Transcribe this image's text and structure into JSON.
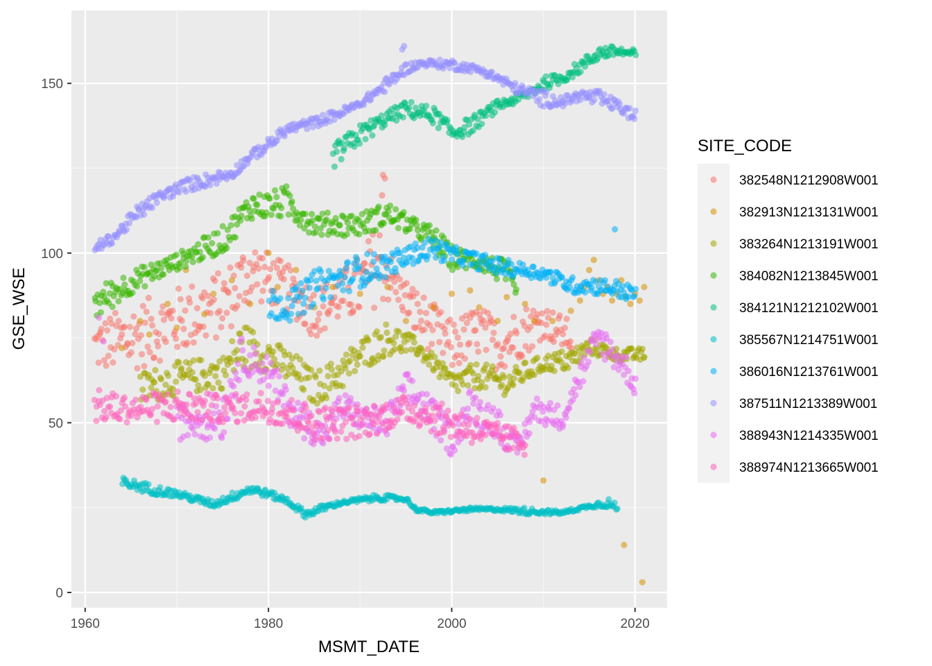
{
  "chart_data": {
    "type": "scatter",
    "title": "",
    "xlabel": "MSMT_DATE",
    "ylabel": "GSE_WSE",
    "xlim": [
      1958.5,
      2023.5
    ],
    "ylim": [
      -4.5,
      171.5
    ],
    "xticks": [
      1960,
      1980,
      2000,
      2020
    ],
    "xtick_labels": [
      "1960",
      "1980",
      "2000",
      "2020"
    ],
    "xminor": [
      1970,
      1990,
      2010
    ],
    "yticks": [
      0,
      50,
      100,
      150
    ],
    "ytick_labels": [
      "0",
      "50",
      "100",
      "150"
    ],
    "yminor": [
      25,
      75,
      125
    ],
    "grid": true,
    "legend": {
      "title": "SITE_CODE",
      "position": "right"
    },
    "point_alpha": 0.55,
    "series": [
      {
        "name": "382548N1212908W001",
        "color": "#F8766D",
        "ranges": [
          [
            1961,
            65,
            80
          ],
          [
            1965,
            65,
            85
          ],
          [
            1970,
            70,
            90
          ],
          [
            1975,
            75,
            95
          ],
          [
            1978,
            85,
            105
          ],
          [
            1980,
            85,
            100
          ],
          [
            1983,
            80,
            95
          ],
          [
            1985,
            75,
            90
          ],
          [
            1988,
            80,
            95
          ],
          [
            1990,
            80,
            100
          ],
          [
            1992,
            85,
            110
          ],
          [
            1994,
            85,
            95
          ],
          [
            1996,
            75,
            90
          ],
          [
            1998,
            70,
            85
          ],
          [
            2000,
            65,
            80
          ],
          [
            2003,
            70,
            85
          ],
          [
            2005,
            65,
            80
          ],
          [
            2008,
            70,
            85
          ],
          [
            2010,
            75,
            85
          ],
          [
            2013,
            70,
            80
          ]
        ],
        "points": [
          [
            1992.5,
            123
          ],
          [
            1992.7,
            122
          ],
          [
            1992.4,
            117
          ]
        ]
      },
      {
        "name": "382913N1213131W001",
        "color": "#D89000",
        "ranges": [],
        "points": [
          [
            1964,
            72
          ],
          [
            1966,
            80
          ],
          [
            1967,
            76
          ],
          [
            1969,
            85
          ],
          [
            1970,
            78
          ],
          [
            1971,
            95
          ],
          [
            1973,
            82
          ],
          [
            1974,
            88
          ],
          [
            1976,
            92
          ],
          [
            1978,
            85
          ],
          [
            1980,
            100
          ],
          [
            1981,
            90
          ],
          [
            1983,
            95
          ],
          [
            1985,
            84
          ],
          [
            1987,
            90
          ],
          [
            1990,
            88
          ],
          [
            1993,
            90
          ],
          [
            1995,
            80
          ],
          [
            1998,
            84
          ],
          [
            2000,
            88
          ],
          [
            2002,
            89
          ],
          [
            2003,
            84
          ],
          [
            2005,
            80
          ],
          [
            2006,
            87
          ],
          [
            2008,
            85
          ],
          [
            2009,
            80
          ],
          [
            2010,
            33
          ],
          [
            2011,
            80
          ],
          [
            2013,
            83
          ],
          [
            2014,
            86
          ],
          [
            2014.5,
            90
          ],
          [
            2015,
            95
          ],
          [
            2015.5,
            98
          ],
          [
            2016,
            92
          ],
          [
            2016.5,
            88
          ],
          [
            2017,
            90
          ],
          [
            2017.5,
            86
          ],
          [
            2018,
            88
          ],
          [
            2018.5,
            92
          ],
          [
            2018.8,
            14
          ],
          [
            2019,
            87
          ],
          [
            2019.5,
            85
          ],
          [
            2020,
            88
          ],
          [
            2020.5,
            86
          ],
          [
            2020.8,
            3
          ],
          [
            2021,
            90
          ]
        ]
      },
      {
        "name": "383264N1213191W001",
        "color": "#A3A500",
        "ranges": [
          [
            1966,
            55,
            65
          ],
          [
            1970,
            58,
            68
          ],
          [
            1975,
            60,
            70
          ],
          [
            1977,
            65,
            80
          ],
          [
            1980,
            65,
            75
          ],
          [
            1983,
            60,
            70
          ],
          [
            1985,
            55,
            65
          ],
          [
            1988,
            60,
            70
          ],
          [
            1990,
            65,
            75
          ],
          [
            1993,
            70,
            80
          ],
          [
            1996,
            70,
            75
          ],
          [
            1998,
            65,
            70
          ],
          [
            2000,
            58,
            65
          ],
          [
            2003,
            60,
            68
          ],
          [
            2006,
            58,
            65
          ],
          [
            2008,
            62,
            68
          ],
          [
            2010,
            65,
            70
          ],
          [
            2013,
            65,
            72
          ],
          [
            2015,
            70,
            75
          ],
          [
            2018,
            68,
            72
          ],
          [
            2021,
            68,
            72
          ]
        ],
        "points": []
      },
      {
        "name": "384082N1213845W001",
        "color": "#39B600",
        "ranges": [
          [
            1961,
            80,
            90
          ],
          [
            1965,
            88,
            95
          ],
          [
            1970,
            95,
            100
          ],
          [
            1975,
            100,
            108
          ],
          [
            1978,
            110,
            118
          ],
          [
            1980,
            110,
            118
          ],
          [
            1982,
            110,
            120
          ],
          [
            1985,
            105,
            112
          ],
          [
            1988,
            105,
            112
          ],
          [
            1990,
            105,
            112
          ],
          [
            1993,
            108,
            115
          ],
          [
            1996,
            105,
            110
          ],
          [
            1998,
            100,
            108
          ],
          [
            2000,
            95,
            102
          ],
          [
            2003,
            95,
            100
          ],
          [
            2006,
            90,
            98
          ],
          [
            2007,
            85,
            90
          ]
        ],
        "points": []
      },
      {
        "name": "384121N1212102W001",
        "color": "#00BF7D",
        "ranges": [
          [
            1987,
            125,
            132
          ],
          [
            1990,
            132,
            138
          ],
          [
            1993,
            138,
            142
          ],
          [
            1995,
            140,
            145
          ],
          [
            1998,
            138,
            143
          ],
          [
            2000,
            133,
            138
          ],
          [
            2002,
            135,
            140
          ],
          [
            2005,
            142,
            145
          ],
          [
            2008,
            145,
            148
          ],
          [
            2010,
            148,
            152
          ],
          [
            2012,
            150,
            153
          ],
          [
            2014,
            153,
            157
          ],
          [
            2016,
            157,
            161
          ],
          [
            2018,
            158,
            161
          ],
          [
            2020,
            157,
            160
          ]
        ],
        "points": []
      },
      {
        "name": "385567N1214751W001",
        "color": "#00BFC4",
        "ranges": [
          [
            1964,
            31,
            34
          ],
          [
            1967,
            29,
            32
          ],
          [
            1970,
            28,
            30
          ],
          [
            1974,
            25,
            27
          ],
          [
            1978,
            29,
            32
          ],
          [
            1980,
            28,
            30
          ],
          [
            1982,
            26,
            28
          ],
          [
            1984,
            22,
            24
          ],
          [
            1986,
            24,
            26
          ],
          [
            1988,
            26,
            27
          ],
          [
            1992,
            27,
            29
          ],
          [
            1995,
            27,
            28
          ],
          [
            1996,
            24,
            25
          ],
          [
            1998,
            23,
            24
          ],
          [
            2002,
            24,
            25
          ],
          [
            2005,
            24,
            25
          ],
          [
            2008,
            23,
            25
          ],
          [
            2012,
            23,
            24
          ],
          [
            2015,
            25,
            26
          ],
          [
            2017,
            25,
            28
          ],
          [
            2018,
            23,
            26
          ]
        ],
        "points": []
      },
      {
        "name": "386016N1213761W001",
        "color": "#00B0F6",
        "ranges": [
          [
            1980,
            80,
            90
          ],
          [
            1983,
            80,
            90
          ],
          [
            1985,
            85,
            95
          ],
          [
            1988,
            88,
            97
          ],
          [
            1990,
            90,
            100
          ],
          [
            1993,
            93,
            100
          ],
          [
            1996,
            97,
            103
          ],
          [
            1998,
            98,
            105
          ],
          [
            2000,
            97,
            102
          ],
          [
            2003,
            95,
            100
          ],
          [
            2006,
            93,
            98
          ],
          [
            2008,
            93,
            97
          ],
          [
            2010,
            92,
            96
          ],
          [
            2013,
            88,
            93
          ],
          [
            2015,
            88,
            93
          ],
          [
            2018,
            87,
            92
          ],
          [
            2020,
            85,
            90
          ]
        ],
        "points": [
          [
            2017.8,
            107
          ]
        ]
      },
      {
        "name": "387511N1213389W001",
        "color": "#9590FF",
        "ranges": [
          [
            1961,
            100,
            103
          ],
          [
            1963,
            103,
            106
          ],
          [
            1966,
            110,
            115
          ],
          [
            1968,
            115,
            118
          ],
          [
            1971,
            118,
            122
          ],
          [
            1974,
            120,
            124
          ],
          [
            1976,
            122,
            125
          ],
          [
            1978,
            127,
            130
          ],
          [
            1980,
            130,
            134
          ],
          [
            1982,
            135,
            138
          ],
          [
            1985,
            137,
            140
          ],
          [
            1988,
            140,
            143
          ],
          [
            1990,
            143,
            145
          ],
          [
            1993,
            148,
            152
          ],
          [
            1995,
            153,
            156
          ],
          [
            1997,
            155,
            157
          ],
          [
            2000,
            154,
            157
          ],
          [
            2003,
            153,
            155
          ],
          [
            2005,
            150,
            153
          ],
          [
            2007,
            147,
            150
          ],
          [
            2010,
            143,
            148
          ],
          [
            2012,
            143,
            146
          ],
          [
            2014,
            145,
            148
          ],
          [
            2016,
            143,
            148
          ],
          [
            2018,
            142,
            145
          ],
          [
            2020,
            138,
            142
          ]
        ],
        "points": [
          [
            1994.8,
            161
          ],
          [
            1994.6,
            160
          ]
        ]
      },
      {
        "name": "388943N1214335W001",
        "color": "#E76BF3",
        "ranges": [
          [
            1970,
            45,
            55
          ],
          [
            1975,
            45,
            60
          ],
          [
            1977,
            65,
            75
          ],
          [
            1980,
            60,
            70
          ],
          [
            1982,
            50,
            60
          ],
          [
            1984,
            45,
            55
          ],
          [
            1986,
            42,
            50
          ],
          [
            1988,
            50,
            60
          ],
          [
            1990,
            48,
            55
          ],
          [
            1993,
            45,
            55
          ],
          [
            1995,
            55,
            65
          ],
          [
            1997,
            50,
            60
          ],
          [
            2000,
            40,
            50
          ],
          [
            2002,
            50,
            60
          ],
          [
            2005,
            45,
            55
          ],
          [
            2007,
            38,
            45
          ],
          [
            2009,
            50,
            58
          ],
          [
            2012,
            48,
            55
          ],
          [
            2014,
            60,
            68
          ],
          [
            2016,
            70,
            80
          ],
          [
            2019,
            62,
            70
          ],
          [
            2020,
            57,
            65
          ]
        ],
        "points": [
          [
            1961.5,
            81
          ],
          [
            1962,
            74
          ]
        ]
      },
      {
        "name": "388974N1213665W001",
        "color": "#FF62BC",
        "ranges": [
          [
            1961,
            50,
            60
          ],
          [
            1965,
            50,
            58
          ],
          [
            1970,
            50,
            60
          ],
          [
            1975,
            50,
            58
          ],
          [
            1980,
            50,
            60
          ],
          [
            1985,
            45,
            55
          ],
          [
            1990,
            45,
            55
          ],
          [
            1995,
            50,
            58
          ],
          [
            2000,
            45,
            55
          ],
          [
            2005,
            42,
            50
          ],
          [
            2008,
            40,
            48
          ]
        ],
        "points": []
      }
    ]
  }
}
